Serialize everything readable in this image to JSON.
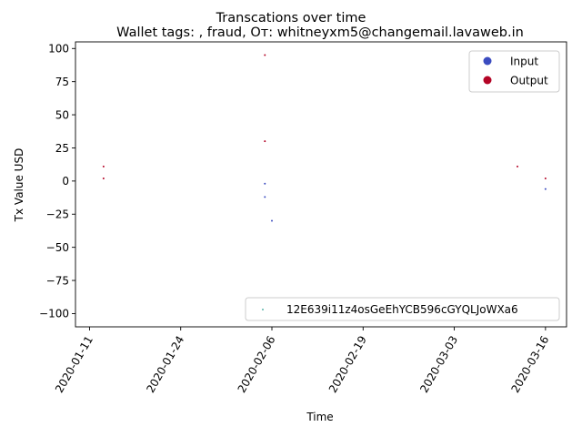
{
  "chart_data": {
    "type": "scatter",
    "title": "Transcations over time",
    "subtitle": "Wallet tags: , fraud, Oт: whitneyxm5@changemail.lavaweb.in",
    "xlabel": "Time",
    "ylabel": "Tx Value USD",
    "xlim": [
      "2020-01-09",
      "2020-03-19"
    ],
    "ylim": [
      -110,
      105
    ],
    "xticks": [
      "2020-01-11",
      "2020-01-24",
      "2020-02-06",
      "2020-02-19",
      "2020-03-03",
      "2020-03-16"
    ],
    "yticks": [
      100,
      75,
      50,
      25,
      0,
      -25,
      -50,
      -75,
      -100
    ],
    "xtick_labels": [
      "2020-01-11",
      "2020-01-24",
      "2020-02-06",
      "2020-02-19",
      "2020-03-03",
      "2020-03-16"
    ],
    "ytick_labels": [
      "100",
      "75",
      "50",
      "25",
      "0",
      "−25",
      "−50",
      "−75",
      "−100"
    ],
    "x_tick_rotation": 60,
    "grid": false,
    "legend_placement": "top-right",
    "series": [
      {
        "name": "Input",
        "color": "#3b4cc0",
        "points": [
          {
            "x": "2020-02-05",
            "y": -2
          },
          {
            "x": "2020-02-05",
            "y": -12
          },
          {
            "x": "2020-02-06",
            "y": -30
          },
          {
            "x": "2020-03-16",
            "y": -6
          }
        ]
      },
      {
        "name": "Output",
        "color": "#b40426",
        "points": [
          {
            "x": "2020-01-13",
            "y": 11
          },
          {
            "x": "2020-01-13",
            "y": 2
          },
          {
            "x": "2020-02-05",
            "y": 95
          },
          {
            "x": "2020-02-05",
            "y": 30
          },
          {
            "x": "2020-03-12",
            "y": 11
          },
          {
            "x": "2020-03-16",
            "y": 2
          }
        ]
      }
    ],
    "secondary_legend": {
      "label": "12E639i11z4osGeEhYCB596cGYQLJoWXa6",
      "color": "#2a9d8f",
      "placement": "lower-right"
    }
  }
}
